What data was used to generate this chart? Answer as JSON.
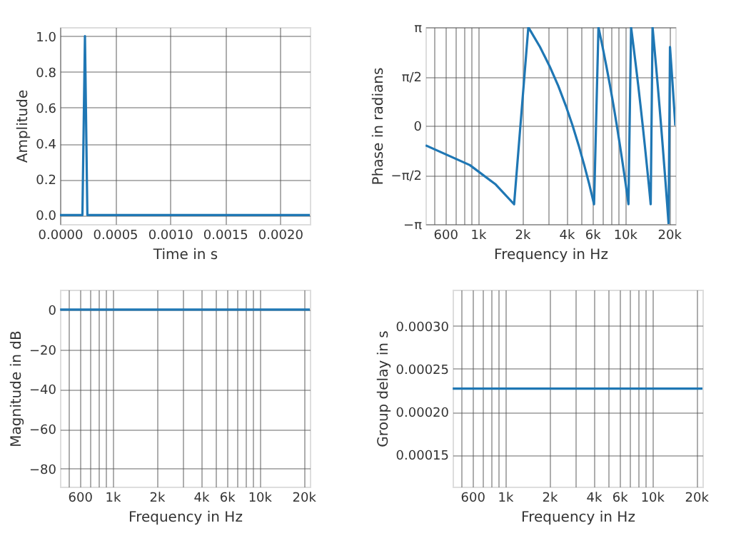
{
  "chart_data": [
    {
      "type": "line",
      "xlabel": "Time in s",
      "ylabel": "Amplitude",
      "grid": true,
      "x": [
        0,
        0.000204,
        0.000227,
        0.000249,
        0.00227
      ],
      "series": [
        {
          "color": "#1f77b4",
          "values": [
            0,
            0,
            1,
            0,
            0
          ]
        }
      ],
      "xlim": [
        0,
        0.00227
      ],
      "ylim": [
        -0.05,
        1.05
      ],
      "xticks": [
        {
          "value": 0,
          "label": "0.0000"
        },
        {
          "value": 0.0005,
          "label": "0.0005"
        },
        {
          "value": 0.001,
          "label": "0.0010"
        },
        {
          "value": 0.0015,
          "label": "0.0015"
        },
        {
          "value": 0.002,
          "label": "0.0020"
        }
      ],
      "yticks": [
        {
          "value": 0,
          "label": "0.0"
        },
        {
          "value": 0.2,
          "label": "0.2"
        },
        {
          "value": 0.4,
          "label": "0.4"
        },
        {
          "value": 0.6,
          "label": "0.6"
        },
        {
          "value": 0.8,
          "label": "0.8"
        },
        {
          "value": 1,
          "label": "1.0"
        }
      ]
    },
    {
      "type": "line",
      "xlabel": "Frequency in Hz",
      "ylabel": "Phase in radians",
      "grid": true,
      "log": "x",
      "x": [
        441,
        882,
        1323,
        1764,
        2205,
        2646,
        3087,
        3528,
        3969,
        4410,
        4851,
        5292,
        5733,
        6174,
        6615,
        7056,
        7497,
        7938,
        8379,
        8820,
        9261,
        9702,
        10143,
        10584,
        11025,
        11466,
        11907,
        12348,
        12789,
        13230,
        13671,
        14112,
        14553,
        14994,
        15435,
        15876,
        16317,
        16758,
        17199,
        17640,
        18081,
        18522,
        18963,
        19404,
        19845,
        20286,
        20727,
        21168,
        21609,
        22050
      ],
      "series": [
        {
          "color": "#1f77b4",
          "values": [
            -0.63,
            -1.26,
            -1.88,
            -2.51,
            3.14,
            2.51,
            1.88,
            1.26,
            0.63,
            0,
            -0.63,
            -1.26,
            -1.88,
            -2.51,
            3.14,
            2.51,
            1.88,
            1.26,
            0.63,
            0,
            -0.63,
            -1.26,
            -1.88,
            -2.51,
            3.14,
            2.51,
            1.88,
            1.26,
            0.63,
            0,
            -0.63,
            -1.26,
            -1.88,
            -2.51,
            3.14,
            2.51,
            1.88,
            1.26,
            0.63,
            0,
            -0.63,
            -1.26,
            -1.88,
            -2.51,
            -3.14,
            2.51,
            1.88,
            1.26,
            0.63,
            0
          ]
        }
      ],
      "xlim": [
        440,
        22050
      ],
      "ylim": [
        -3.1416,
        3.1416
      ],
      "xticks": [
        {
          "value": 500,
          "label": null
        },
        {
          "value": 600,
          "label": "600"
        },
        {
          "value": 700,
          "label": null
        },
        {
          "value": 800,
          "label": null
        },
        {
          "value": 900,
          "label": null
        },
        {
          "value": 1000,
          "label": "1k"
        },
        {
          "value": 2000,
          "label": "2k"
        },
        {
          "value": 3000,
          "label": null
        },
        {
          "value": 4000,
          "label": "4k"
        },
        {
          "value": 5000,
          "label": null
        },
        {
          "value": 6000,
          "label": "6k"
        },
        {
          "value": 7000,
          "label": null
        },
        {
          "value": 8000,
          "label": null
        },
        {
          "value": 9000,
          "label": null
        },
        {
          "value": 10000,
          "label": "10k"
        },
        {
          "value": 20000,
          "label": "20k"
        }
      ],
      "yticks": [
        {
          "value": -3.1416,
          "label": "−π"
        },
        {
          "value": -1.5708,
          "label": "−π/2"
        },
        {
          "value": 0,
          "label": "0"
        },
        {
          "value": 1.5708,
          "label": "π/2"
        },
        {
          "value": 3.1416,
          "label": "π"
        }
      ]
    },
    {
      "type": "line",
      "xlabel": "Frequency in Hz",
      "ylabel": "Magnitude in dB",
      "grid": true,
      "log": "x",
      "x": [
        441,
        22050
      ],
      "series": [
        {
          "color": "#1f77b4",
          "values": [
            0,
            0
          ]
        }
      ],
      "xlim": [
        440,
        22050
      ],
      "ylim": [
        -89,
        10
      ],
      "xticks": [
        {
          "value": 500,
          "label": null
        },
        {
          "value": 600,
          "label": "600"
        },
        {
          "value": 700,
          "label": null
        },
        {
          "value": 800,
          "label": null
        },
        {
          "value": 900,
          "label": null
        },
        {
          "value": 1000,
          "label": "1k"
        },
        {
          "value": 2000,
          "label": "2k"
        },
        {
          "value": 3000,
          "label": null
        },
        {
          "value": 4000,
          "label": "4k"
        },
        {
          "value": 5000,
          "label": null
        },
        {
          "value": 6000,
          "label": "6k"
        },
        {
          "value": 7000,
          "label": null
        },
        {
          "value": 8000,
          "label": null
        },
        {
          "value": 9000,
          "label": null
        },
        {
          "value": 10000,
          "label": "10k"
        },
        {
          "value": 20000,
          "label": "20k"
        }
      ],
      "yticks": [
        {
          "value": -80,
          "label": "−80"
        },
        {
          "value": -60,
          "label": "−60"
        },
        {
          "value": -40,
          "label": "−40"
        },
        {
          "value": -20,
          "label": "−20"
        },
        {
          "value": 0,
          "label": "0"
        }
      ]
    },
    {
      "type": "line",
      "xlabel": "Frequency in Hz",
      "ylabel": "Group delay in s",
      "grid": true,
      "log": "x",
      "x": [
        441,
        22050
      ],
      "series": [
        {
          "color": "#1f77b4",
          "values": [
            0.000227,
            0.000227
          ]
        }
      ],
      "xlim": [
        440,
        22050
      ],
      "ylim": [
        0.000113,
        0.000342
      ],
      "xticks": [
        {
          "value": 500,
          "label": null
        },
        {
          "value": 600,
          "label": "600"
        },
        {
          "value": 700,
          "label": null
        },
        {
          "value": 800,
          "label": null
        },
        {
          "value": 900,
          "label": null
        },
        {
          "value": 1000,
          "label": "1k"
        },
        {
          "value": 2000,
          "label": "2k"
        },
        {
          "value": 3000,
          "label": null
        },
        {
          "value": 4000,
          "label": "4k"
        },
        {
          "value": 5000,
          "label": null
        },
        {
          "value": 6000,
          "label": "6k"
        },
        {
          "value": 7000,
          "label": null
        },
        {
          "value": 8000,
          "label": null
        },
        {
          "value": 9000,
          "label": null
        },
        {
          "value": 10000,
          "label": "10k"
        },
        {
          "value": 20000,
          "label": "20k"
        }
      ],
      "yticks": [
        {
          "value": 0.00015,
          "label": "0.00015"
        },
        {
          "value": 0.0002,
          "label": "0.00020"
        },
        {
          "value": 0.00025,
          "label": "0.00025"
        },
        {
          "value": 0.0003,
          "label": "0.00030"
        }
      ]
    }
  ]
}
